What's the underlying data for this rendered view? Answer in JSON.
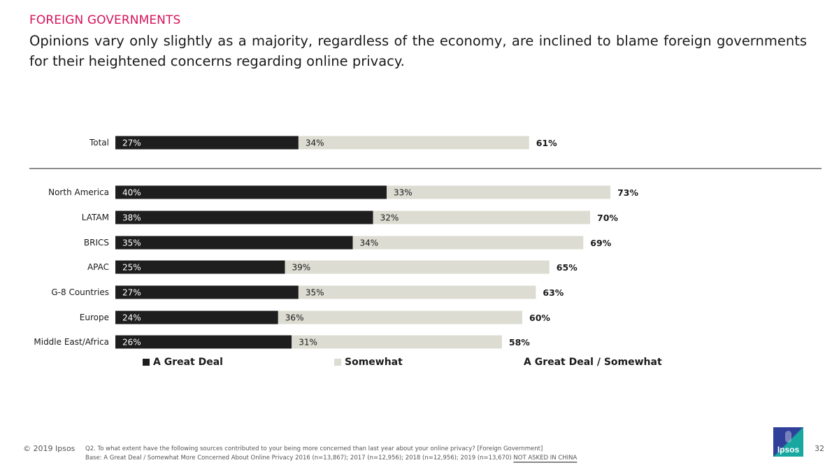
{
  "header": {
    "section_label": "FOREIGN GOVERNMENTS",
    "headline": "Opinions vary only slightly as a majority, regardless of the economy, are inclined to blame foreign governments for their heightened concerns regarding online privacy."
  },
  "chart_data": {
    "type": "bar",
    "orientation": "horizontal",
    "stacked": true,
    "categories": [
      "Total",
      "North America",
      "LATAM",
      "BRICS",
      "APAC",
      "G-8 Countries",
      "Europe",
      "Middle East/Africa"
    ],
    "series": [
      {
        "name": "A Great Deal",
        "color": "#1e1e1e",
        "values": [
          27,
          40,
          38,
          35,
          25,
          27,
          24,
          26
        ]
      },
      {
        "name": "Somewhat",
        "color": "#dcdcd2",
        "values": [
          34,
          33,
          32,
          34,
          39,
          35,
          36,
          31
        ]
      }
    ],
    "totals": {
      "name": "A Great Deal / Somewhat",
      "values": [
        61,
        73,
        70,
        69,
        65,
        63,
        60,
        58
      ]
    },
    "value_suffix": "%",
    "xlim": [
      0,
      100
    ],
    "title": "",
    "xlabel": "",
    "ylabel": "",
    "grid": false,
    "legend_placement": "bottom"
  },
  "legend": {
    "great_deal": "A Great Deal",
    "somewhat": "Somewhat",
    "combined": "A Great Deal / Somewhat"
  },
  "footer": {
    "copyright": "© 2019 Ipsos",
    "question": "Q2. To what extent have the following sources contributed to your being more concerned than last year about your online privacy? [Foreign Government]",
    "base": "Base: A Great Deal / Somewhat More Concerned About Online Privacy 2016 (n=13,867); 2017 (n=12,956); 2018 (n=12,956); 2019 (n=13,670)",
    "not_asked": "NOT ASKED IN CHINA",
    "logo_text": "Ipsos",
    "page_number": "32"
  }
}
